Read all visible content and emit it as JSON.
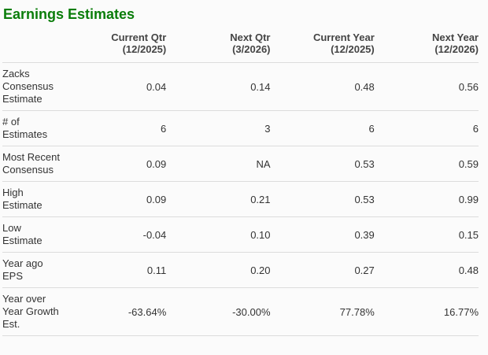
{
  "page": {
    "title": "Earnings Estimates"
  },
  "colors": {
    "title_green": "#0a7d0a",
    "body_text": "#333333",
    "header_text": "#444444",
    "divider": "#dcdcdc",
    "background": "#fbfbfb"
  },
  "chart_data": {
    "type": "table",
    "title": "Earnings Estimates",
    "columns": [
      {
        "label": "Current Qtr",
        "period": "(12/2025)"
      },
      {
        "label": "Next Qtr",
        "period": "(3/2026)"
      },
      {
        "label": "Current Year",
        "period": "(12/2025)"
      },
      {
        "label": "Next Year",
        "period": "(12/2026)"
      }
    ],
    "rows": [
      {
        "label": "Zacks Consensus Estimate",
        "values": [
          "0.04",
          "0.14",
          "0.48",
          "0.56"
        ]
      },
      {
        "label": "# of Estimates",
        "values": [
          "6",
          "3",
          "6",
          "6"
        ]
      },
      {
        "label": "Most Recent Consensus",
        "values": [
          "0.09",
          "NA",
          "0.53",
          "0.59"
        ]
      },
      {
        "label": "High Estimate",
        "values": [
          "0.09",
          "0.21",
          "0.53",
          "0.99"
        ]
      },
      {
        "label": "Low Estimate",
        "values": [
          "-0.04",
          "0.10",
          "0.39",
          "0.15"
        ]
      },
      {
        "label": "Year ago EPS",
        "values": [
          "0.11",
          "0.20",
          "0.27",
          "0.48"
        ]
      },
      {
        "label": "Year over Year Growth Est.",
        "values": [
          "-63.64%",
          "-30.00%",
          "77.78%",
          "16.77%"
        ]
      }
    ]
  }
}
